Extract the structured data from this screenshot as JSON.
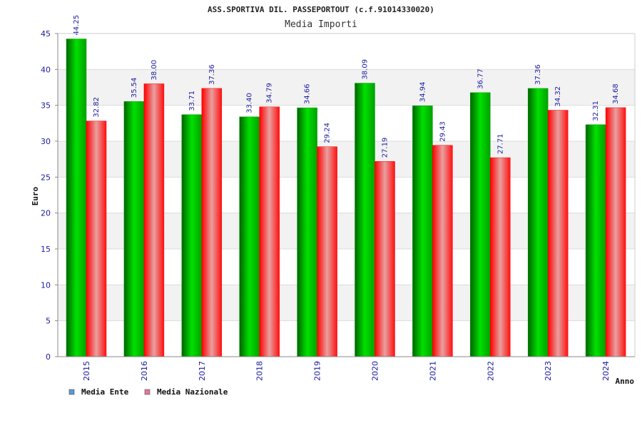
{
  "chart_data": {
    "type": "bar",
    "title": "ASS.SPORTIVA DIL. PASSEPORTOUT (c.f.91014330020)",
    "subtitle": "Media Importi",
    "xlabel": "Anno",
    "ylabel": "Euro",
    "ylim": [
      0,
      45
    ],
    "yticks": [
      "0",
      "5",
      "10",
      "15",
      "20",
      "25",
      "30",
      "35",
      "40",
      "45"
    ],
    "categories": [
      "2015",
      "2016",
      "2017",
      "2018",
      "2019",
      "2020",
      "2021",
      "2022",
      "2023",
      "2024"
    ],
    "series": [
      {
        "name": "Media Ente",
        "values": [
          44.25,
          35.54,
          33.71,
          33.4,
          34.66,
          38.09,
          34.94,
          36.77,
          37.36,
          32.31
        ],
        "labels": [
          "44.25",
          "35.54",
          "33.71",
          "33.40",
          "34.66",
          "38.09",
          "34.94",
          "36.77",
          "37.36",
          "32.31"
        ],
        "color": "#00b400"
      },
      {
        "name": "Media Nazionale",
        "values": [
          32.82,
          38.0,
          37.36,
          34.79,
          29.24,
          27.19,
          29.43,
          27.71,
          34.32,
          34.68
        ],
        "labels": [
          "32.82",
          "38.00",
          "37.36",
          "34.79",
          "29.24",
          "27.19",
          "29.43",
          "27.71",
          "34.32",
          "34.68"
        ],
        "color": "#ff1a1a"
      }
    ],
    "legend": [
      {
        "label": "Media Ente",
        "color": "#5b9bd5"
      },
      {
        "label": "Media Nazionale",
        "color": "#e07aa0"
      }
    ],
    "legend_position": "bottom-left",
    "grid": true
  }
}
